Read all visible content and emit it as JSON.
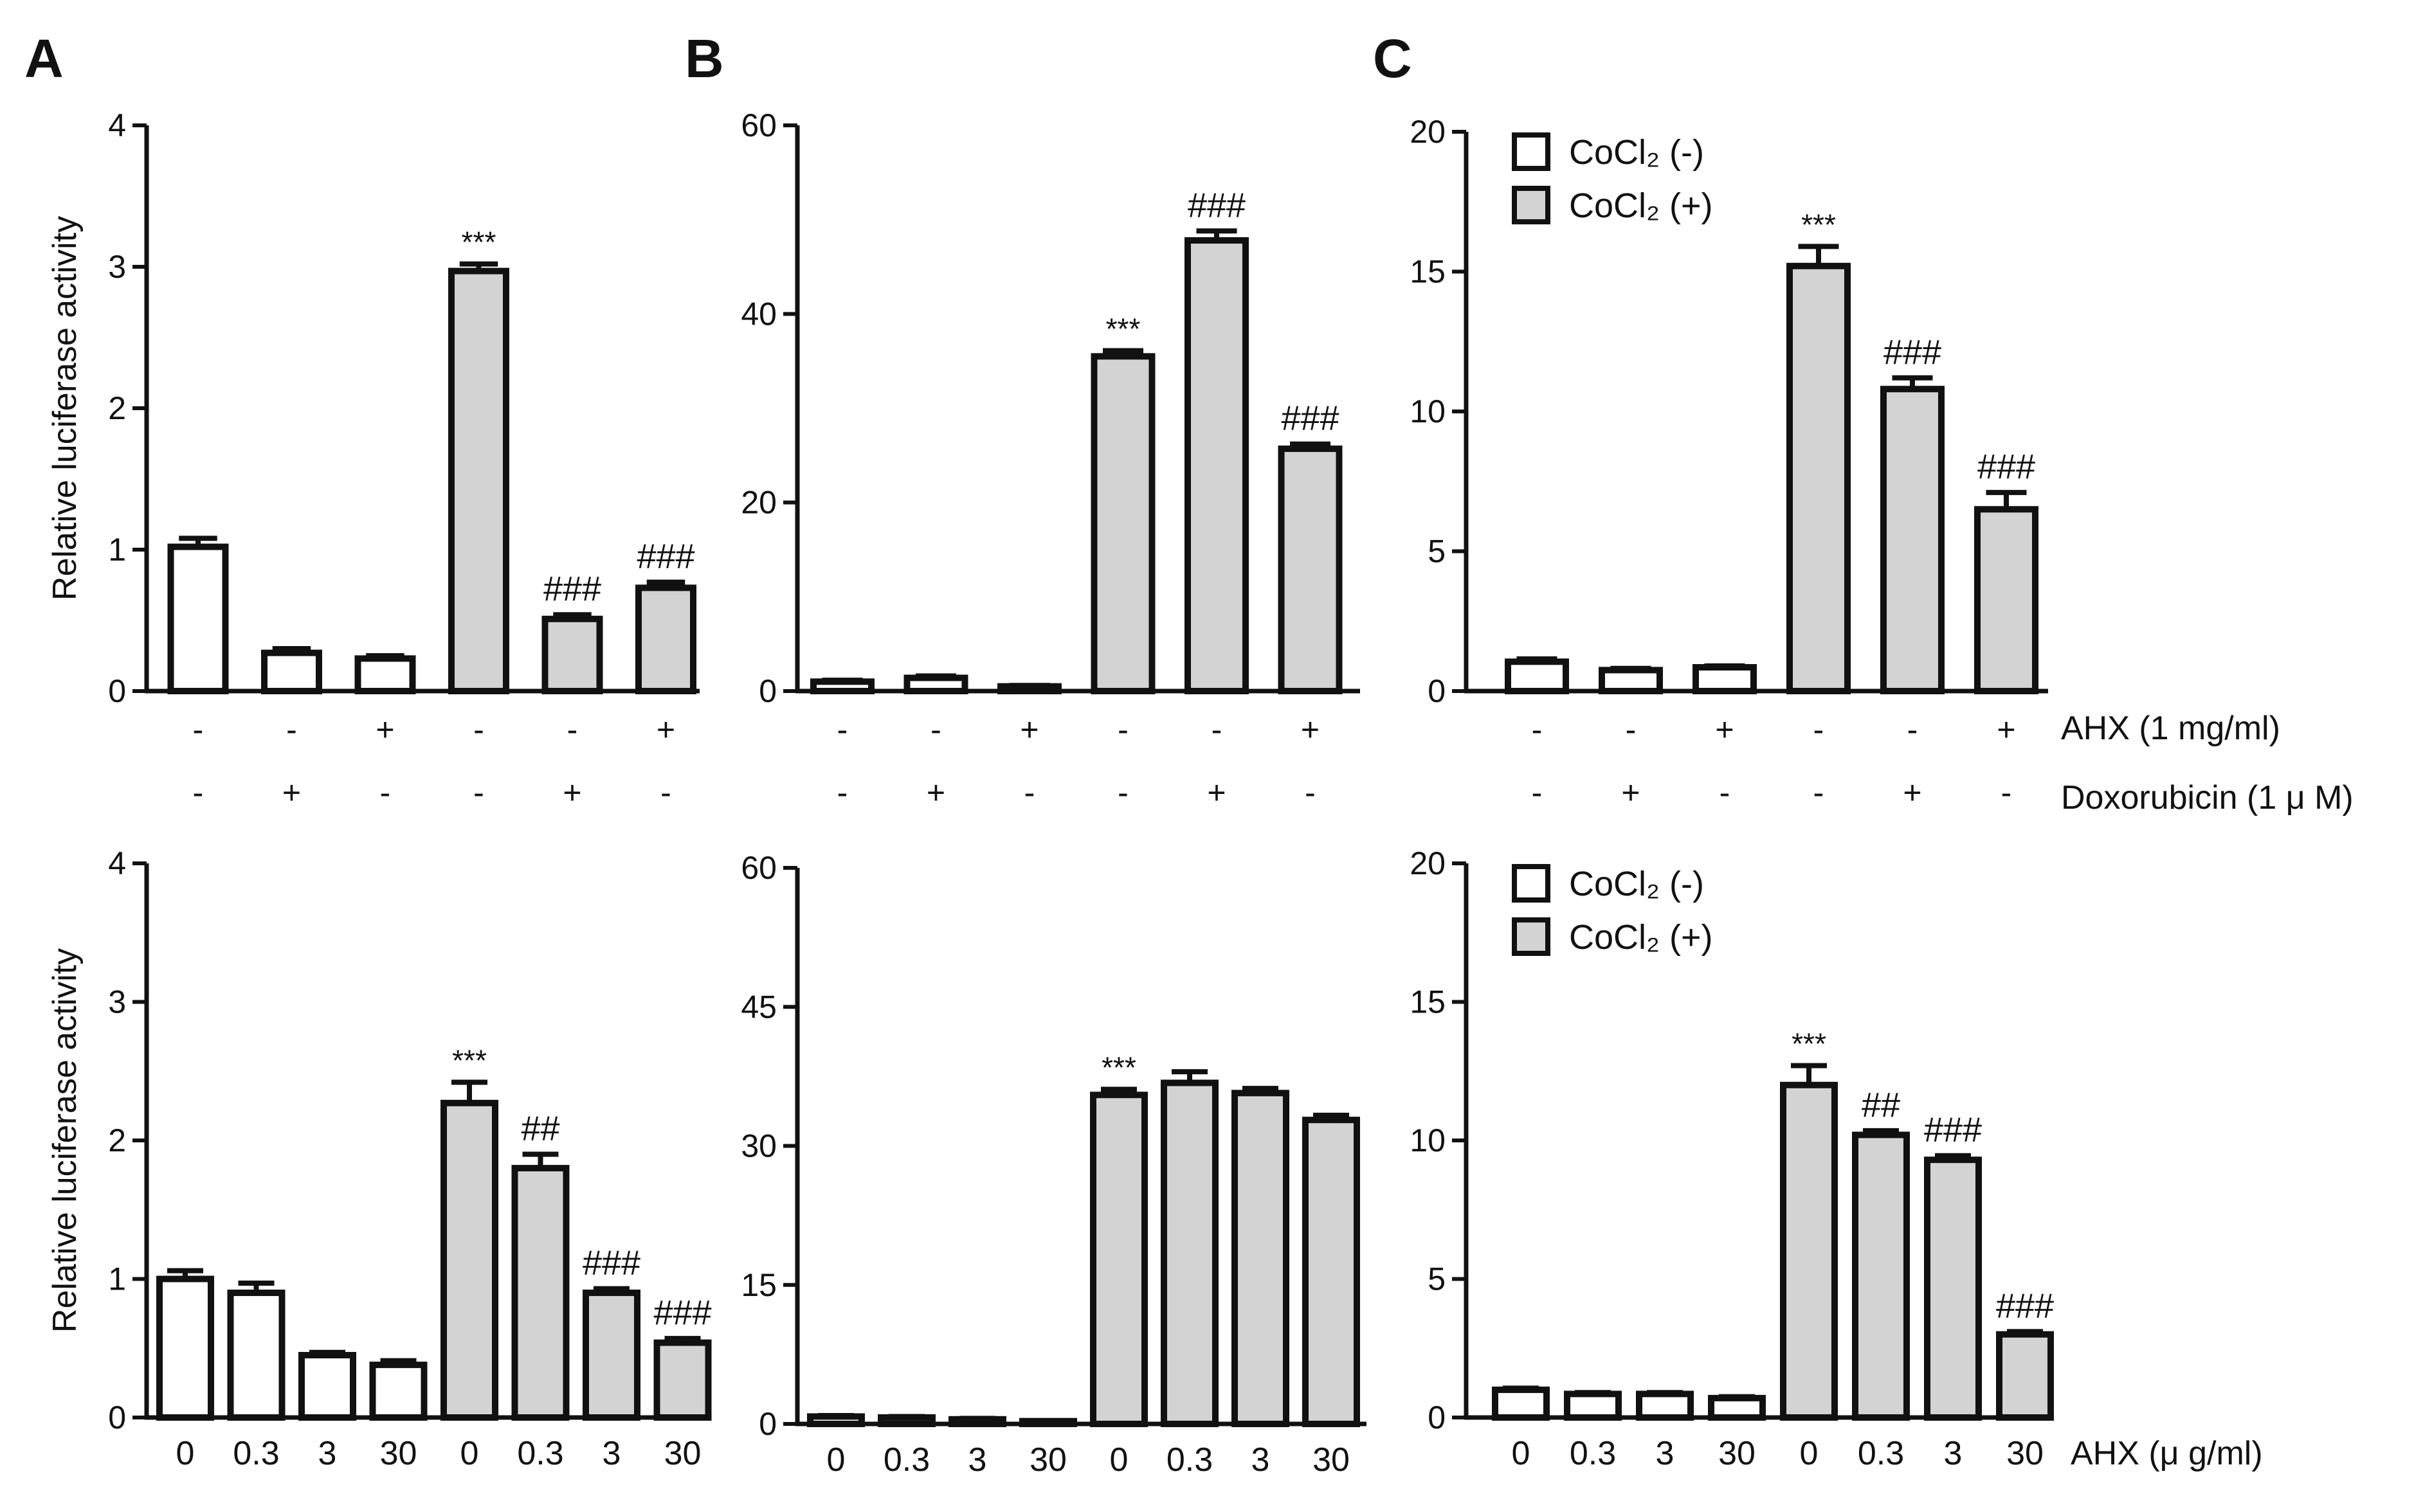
{
  "panel_letters": [
    "A",
    "B",
    "C"
  ],
  "ylabel": "Relative luciferase activity",
  "row_labels": {
    "ahx": "AHX (1 mg/ml)",
    "dox": "Doxorubicin (1 μ M)"
  },
  "ahx_dose_label": "AHX (μ g/ml)",
  "legend": {
    "neg_label": "CoCl₂ (-)",
    "pos_label": "CoCl₂ (+)"
  },
  "colors": {
    "cocl2_neg": "#ffffff",
    "cocl2_pos": "#d3d3d3",
    "stroke": "#111111"
  },
  "chart_data": [
    {
      "id": "A-top",
      "type": "bar",
      "panel": "A",
      "ylabel": "Relative luciferase activity",
      "ylim": [
        0,
        4
      ],
      "yticks": [
        "0",
        "1",
        "2",
        "3",
        "4"
      ],
      "ahx": [
        "-",
        "-",
        "+",
        "-",
        "-",
        "+"
      ],
      "dox": [
        "-",
        "+",
        "-",
        "-",
        "+",
        "-"
      ],
      "cocl2": [
        0,
        0,
        0,
        1,
        1,
        1
      ],
      "values": [
        1.02,
        0.27,
        0.23,
        2.97,
        0.51,
        0.73
      ],
      "errors": [
        0.06,
        0.03,
        0.02,
        0.05,
        0.03,
        0.04
      ],
      "annotations": [
        "",
        "",
        "",
        "***",
        "###",
        "###"
      ]
    },
    {
      "id": "B-top",
      "type": "bar",
      "panel": "B",
      "ylabel": "",
      "ylim": [
        0,
        60
      ],
      "yticks": [
        "0",
        "20",
        "40",
        "60"
      ],
      "ahx": [
        "-",
        "-",
        "+",
        "-",
        "-",
        "+"
      ],
      "dox": [
        "-",
        "+",
        "-",
        "-",
        "+",
        "-"
      ],
      "cocl2": [
        0,
        0,
        0,
        1,
        1,
        1
      ],
      "values": [
        1.0,
        1.4,
        0.5,
        35.5,
        47.8,
        25.7
      ],
      "errors": [
        0.15,
        0.2,
        0.1,
        0.6,
        1.0,
        0.5
      ],
      "annotations": [
        "",
        "",
        "",
        "***",
        "###",
        "###"
      ]
    },
    {
      "id": "C-top",
      "type": "bar",
      "panel": "C",
      "ylabel": "",
      "ylim": [
        0,
        20
      ],
      "yticks": [
        "0",
        "5",
        "10",
        "15",
        "20"
      ],
      "legend": true,
      "ahx": [
        "-",
        "-",
        "+",
        "-",
        "-",
        "+"
      ],
      "dox": [
        "-",
        "+",
        "-",
        "-",
        "+",
        "-"
      ],
      "cocl2": [
        0,
        0,
        0,
        1,
        1,
        1
      ],
      "values": [
        1.05,
        0.75,
        0.85,
        15.2,
        10.8,
        6.5
      ],
      "errors": [
        0.1,
        0.06,
        0.05,
        0.7,
        0.4,
        0.6
      ],
      "annotations": [
        "",
        "",
        "",
        "***",
        "###",
        "###"
      ]
    },
    {
      "id": "A-bottom",
      "type": "bar",
      "panel": "A",
      "ylabel": "Relative luciferase activity",
      "ylim": [
        0,
        4
      ],
      "yticks": [
        "0",
        "1",
        "2",
        "3",
        "4"
      ],
      "categories": [
        "0",
        "0.3",
        "3",
        "30",
        "0",
        "0.3",
        "3",
        "30"
      ],
      "cocl2": [
        0,
        0,
        0,
        0,
        1,
        1,
        1,
        1
      ],
      "values": [
        1.0,
        0.9,
        0.45,
        0.38,
        2.27,
        1.8,
        0.9,
        0.54
      ],
      "errors": [
        0.06,
        0.07,
        0.02,
        0.03,
        0.15,
        0.1,
        0.03,
        0.03
      ],
      "annotations": [
        "",
        "",
        "",
        "",
        "***",
        "##",
        "###",
        "###"
      ]
    },
    {
      "id": "B-bottom",
      "type": "bar",
      "panel": "B",
      "ylabel": "",
      "ylim": [
        0,
        60
      ],
      "yticks": [
        "0",
        "15",
        "30",
        "45",
        "60"
      ],
      "categories": [
        "0",
        "0.3",
        "3",
        "30",
        "0",
        "0.3",
        "3",
        "30"
      ],
      "cocl2": [
        0,
        0,
        0,
        0,
        1,
        1,
        1,
        1
      ],
      "values": [
        0.8,
        0.7,
        0.5,
        0.3,
        35.5,
        36.8,
        35.7,
        32.8
      ],
      "errors": [
        0.1,
        0.1,
        0.1,
        0.05,
        0.6,
        1.2,
        0.5,
        0.5
      ],
      "annotations": [
        "",
        "",
        "",
        "",
        "***",
        "",
        "",
        ""
      ]
    },
    {
      "id": "C-bottom",
      "type": "bar",
      "panel": "C",
      "ylabel": "",
      "ylim": [
        0,
        20
      ],
      "yticks": [
        "0",
        "5",
        "10",
        "15",
        "20"
      ],
      "legend": true,
      "categories": [
        "0",
        "0.3",
        "3",
        "30",
        "0",
        "0.3",
        "3",
        "30"
      ],
      "cocl2": [
        0,
        0,
        0,
        0,
        1,
        1,
        1,
        1
      ],
      "values": [
        1.0,
        0.85,
        0.85,
        0.7,
        12.0,
        10.2,
        9.3,
        3.0
      ],
      "errors": [
        0.06,
        0.05,
        0.05,
        0.05,
        0.7,
        0.15,
        0.15,
        0.1
      ],
      "annotations": [
        "",
        "",
        "",
        "",
        "***",
        "##",
        "###",
        "###"
      ]
    }
  ]
}
